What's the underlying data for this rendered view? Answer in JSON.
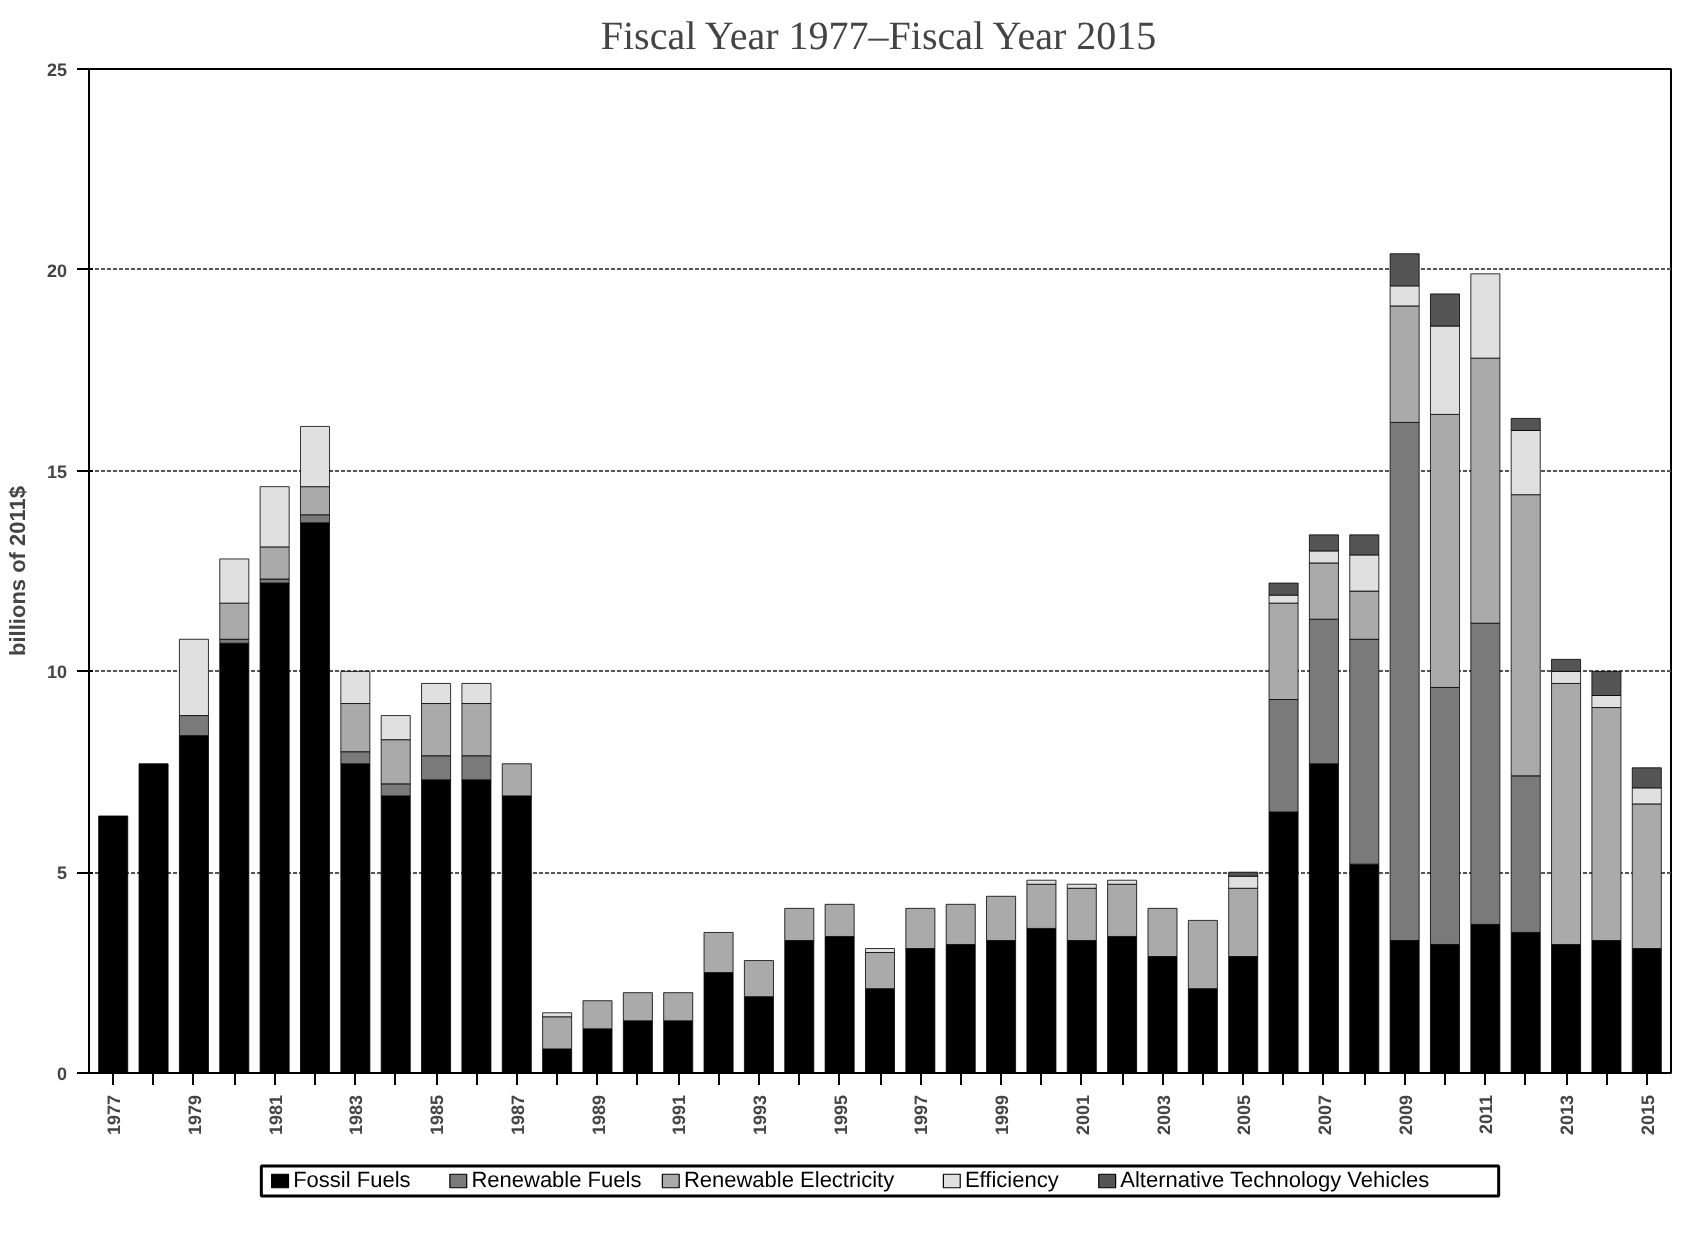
{
  "chart_data": {
    "type": "bar",
    "stacked": true,
    "title": "Fiscal Year 1977–Fiscal Year 2015",
    "ylabel": "billions of 2011$",
    "categories": [
      "1977",
      null,
      "1979",
      null,
      "1981",
      null,
      "1983",
      null,
      "1985",
      null,
      "1987",
      null,
      "1989",
      null,
      "1991",
      null,
      "1993",
      null,
      "1995",
      null,
      "1997",
      null,
      "1999",
      null,
      "2001",
      null,
      "2003",
      null,
      "2005",
      null,
      "2007",
      null,
      "2009",
      null,
      "2011",
      null,
      "2013",
      null,
      "2015"
    ],
    "series": [
      {
        "name": "Fossil Fuels",
        "color": "#000000",
        "values": [
          6.4,
          7.7,
          8.4,
          10.7,
          12.2,
          13.7,
          7.7,
          6.9,
          7.3,
          7.3,
          6.9,
          0.6,
          1.1,
          1.3,
          1.3,
          2.5,
          1.9,
          3.3,
          3.4,
          2.1,
          3.1,
          3.2,
          3.3,
          3.6,
          3.3,
          3.4,
          2.9,
          2.1,
          2.9,
          6.5,
          7.7,
          5.2,
          3.3,
          3.2,
          3.7,
          3.5,
          3.2,
          3.3,
          3.1
        ]
      },
      {
        "name": "Renewable Fuels",
        "color": "#7a7a7a",
        "values": [
          null,
          null,
          0.5,
          0.1,
          0.1,
          0.2,
          0.3,
          0.3,
          0.6,
          0.6,
          null,
          null,
          null,
          null,
          null,
          null,
          null,
          null,
          null,
          null,
          null,
          null,
          null,
          null,
          null,
          null,
          null,
          null,
          null,
          2.8,
          3.6,
          5.6,
          12.9,
          6.4,
          7.5,
          3.9,
          null,
          null,
          null
        ]
      },
      {
        "name": "Renewable Electricity",
        "color": "#aaaaaa",
        "values": [
          null,
          null,
          null,
          0.9,
          0.8,
          0.7,
          1.2,
          1.1,
          1.3,
          1.3,
          0.8,
          0.8,
          0.7,
          0.7,
          0.7,
          1.0,
          0.9,
          0.8,
          0.8,
          0.9,
          1.0,
          1.0,
          1.1,
          1.1,
          1.3,
          1.3,
          1.2,
          1.7,
          1.7,
          2.4,
          1.4,
          1.2,
          2.9,
          6.8,
          6.6,
          7.0,
          6.5,
          5.8,
          3.6
        ]
      },
      {
        "name": "Efficiency",
        "color": "#e0e0e0",
        "values": [
          null,
          null,
          1.9,
          1.1,
          1.5,
          1.5,
          0.8,
          0.6,
          0.5,
          0.5,
          null,
          0.1,
          null,
          null,
          null,
          null,
          null,
          null,
          null,
          0.1,
          null,
          null,
          null,
          0.1,
          0.1,
          0.1,
          null,
          null,
          0.3,
          0.2,
          0.3,
          0.9,
          0.5,
          2.2,
          2.1,
          1.6,
          0.3,
          0.3,
          0.4
        ]
      },
      {
        "name": "Alternative Technology Vehicles",
        "color": "#555555",
        "values": [
          null,
          null,
          null,
          null,
          null,
          null,
          null,
          null,
          null,
          null,
          null,
          null,
          null,
          null,
          null,
          null,
          null,
          null,
          null,
          null,
          null,
          null,
          null,
          null,
          null,
          null,
          null,
          null,
          0.1,
          0.3,
          0.4,
          0.5,
          0.8,
          0.8,
          null,
          0.3,
          0.3,
          0.6,
          0.5
        ]
      }
    ],
    "ylim": [
      0,
      25
    ],
    "yticks": [
      0,
      5,
      10,
      15,
      20,
      25
    ],
    "grid": "y",
    "legend": "bottom"
  }
}
